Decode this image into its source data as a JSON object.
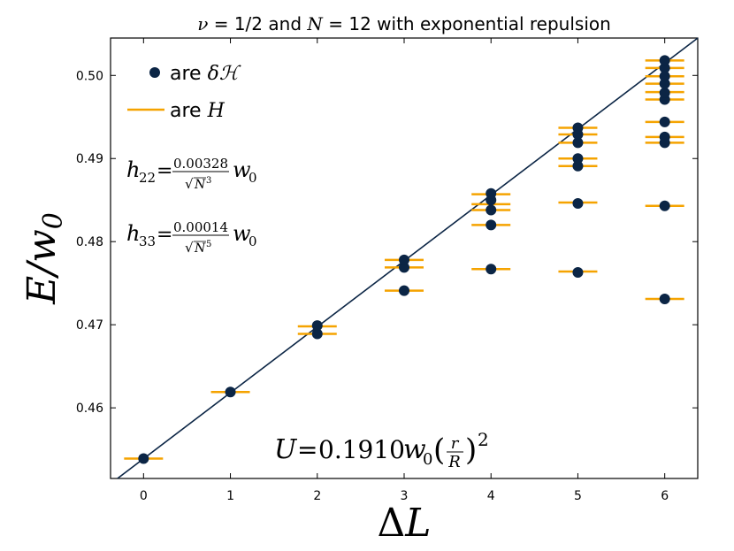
{
  "chart_data": {
    "type": "scatter",
    "title": "ν = 1/2 and N = 12 with exponential repulsion",
    "xlabel": "ΔL",
    "ylabel": "E/w₀",
    "xlim": [
      -0.38,
      6.38
    ],
    "ylim": [
      0.4515,
      0.5045
    ],
    "xticks": [
      0,
      1,
      2,
      3,
      4,
      5,
      6
    ],
    "yticks": [
      0.46,
      0.47,
      0.48,
      0.49,
      0.5
    ],
    "ytick_labels": [
      "0.46",
      "0.47",
      "0.48",
      "0.49",
      "0.50"
    ],
    "grid": false,
    "legend_position": "top-left",
    "series": [
      {
        "name": "are δℋ",
        "marker": "dot",
        "color": "#0b2545",
        "points": [
          [
            0,
            0.4539
          ],
          [
            1,
            0.4619
          ],
          [
            2,
            0.4689
          ],
          [
            2,
            0.4699
          ],
          [
            3,
            0.4741
          ],
          [
            3,
            0.4769
          ],
          [
            3,
            0.4778
          ],
          [
            4,
            0.4767
          ],
          [
            4,
            0.482
          ],
          [
            4,
            0.4838
          ],
          [
            4,
            0.485
          ],
          [
            4,
            0.4858
          ],
          [
            5,
            0.4763
          ],
          [
            5,
            0.4846
          ],
          [
            5,
            0.4891
          ],
          [
            5,
            0.49
          ],
          [
            5,
            0.4919
          ],
          [
            5,
            0.4929
          ],
          [
            5,
            0.4937
          ],
          [
            6,
            0.4731
          ],
          [
            6,
            0.4843
          ],
          [
            6,
            0.4919
          ],
          [
            6,
            0.4926
          ],
          [
            6,
            0.4944
          ],
          [
            6,
            0.4971
          ],
          [
            6,
            0.4979
          ],
          [
            6,
            0.499
          ],
          [
            6,
            0.4999
          ],
          [
            6,
            0.5009
          ],
          [
            6,
            0.5018
          ]
        ]
      },
      {
        "name": "are H",
        "marker": "hline",
        "color": "#f5a300",
        "points": [
          [
            0,
            0.4539
          ],
          [
            1,
            0.4619
          ],
          [
            2,
            0.4689
          ],
          [
            2,
            0.4698
          ],
          [
            3,
            0.4741
          ],
          [
            3,
            0.4769
          ],
          [
            3,
            0.4778
          ],
          [
            4,
            0.4767
          ],
          [
            4,
            0.482
          ],
          [
            4,
            0.4838
          ],
          [
            4,
            0.4845
          ],
          [
            4,
            0.4857
          ],
          [
            5,
            0.4764
          ],
          [
            5,
            0.4847
          ],
          [
            5,
            0.4891
          ],
          [
            5,
            0.49
          ],
          [
            5,
            0.4919
          ],
          [
            5,
            0.4929
          ],
          [
            5,
            0.4937
          ],
          [
            6,
            0.4731
          ],
          [
            6,
            0.4843
          ],
          [
            6,
            0.4919
          ],
          [
            6,
            0.4926
          ],
          [
            6,
            0.4944
          ],
          [
            6,
            0.4971
          ],
          [
            6,
            0.498
          ],
          [
            6,
            0.499
          ],
          [
            6,
            0.4999
          ],
          [
            6,
            0.5009
          ],
          [
            6,
            0.5018
          ]
        ]
      }
    ],
    "fit_line": {
      "points": [
        [
          -0.3,
          0.4515
        ],
        [
          6.38,
          0.5045
        ]
      ],
      "color": "#0b2545"
    },
    "annotations": {
      "h22": {
        "lhs": "h",
        "sub": "22",
        "num": "0.00328",
        "den_base": "N",
        "den_exp": "3",
        "rhs": "w",
        "rhs_sub": "0"
      },
      "h33": {
        "lhs": "h",
        "sub": "33",
        "num": "0.00014",
        "den_base": "N",
        "den_exp": "5",
        "rhs": "w",
        "rhs_sub": "0"
      },
      "potential": {
        "lhs": "U",
        "coef": "0.1910",
        "w": "w",
        "w_sub": "0",
        "r": "r",
        "R": "R",
        "exp": "2"
      }
    }
  }
}
